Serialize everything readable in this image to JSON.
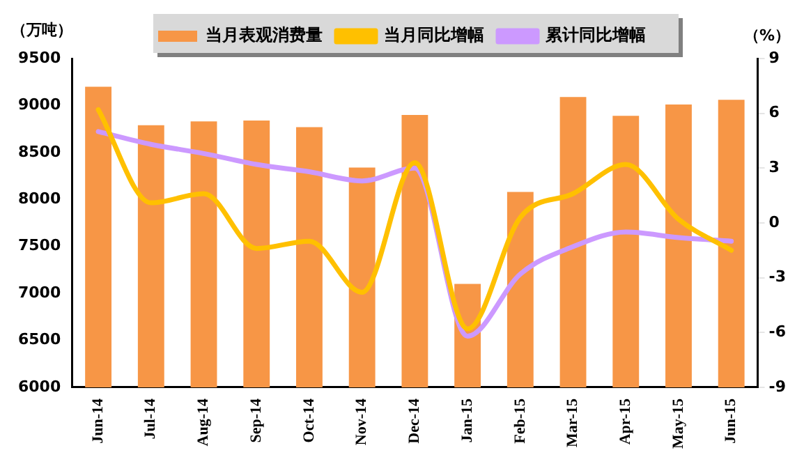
{
  "chart_data": {
    "type": "bar",
    "ylabel": "（万吨）",
    "y2label": "（%）",
    "categories": [
      "Jun-14",
      "Jul-14",
      "Aug-14",
      "Sep-14",
      "Oct-14",
      "Nov-14",
      "Dec-14",
      "Jan-15",
      "Feb-15",
      "Mar-15",
      "Apr-15",
      "May-15",
      "Jun-15"
    ],
    "series": [
      {
        "name": "当月表观消费量",
        "color": "#f79646",
        "values": [
          9200,
          8790,
          8830,
          8840,
          8770,
          8340,
          8900,
          7100,
          8080,
          9090,
          8890,
          9010,
          9060
        ]
      },
      {
        "name": "当月同比增幅",
        "type": "line",
        "axis": "y2",
        "color": "#ffc000",
        "values": [
          6.2,
          1.1,
          1.6,
          -1.4,
          -1.0,
          -3.8,
          3.3,
          -5.8,
          0.3,
          1.6,
          3.2,
          0.2,
          -1.5
        ]
      },
      {
        "name": "累计同比增幅",
        "type": "line",
        "axis": "y2",
        "color": "#cc99ff",
        "values": [
          5.0,
          4.3,
          3.8,
          3.2,
          2.8,
          2.3,
          3.0,
          -6.2,
          -2.8,
          -1.3,
          -0.5,
          -0.8,
          -1.0
        ]
      }
    ],
    "ylim": [
      6000,
      9500
    ],
    "yticks": [
      6000,
      6500,
      7000,
      7500,
      8000,
      8500,
      9000,
      9500
    ],
    "y2lim": [
      -9,
      9
    ],
    "y2ticks": [
      -9,
      -6,
      -3,
      0,
      3,
      6,
      9
    ],
    "grid": false,
    "legend": "top",
    "marker": "none",
    "line_style": "solid"
  }
}
